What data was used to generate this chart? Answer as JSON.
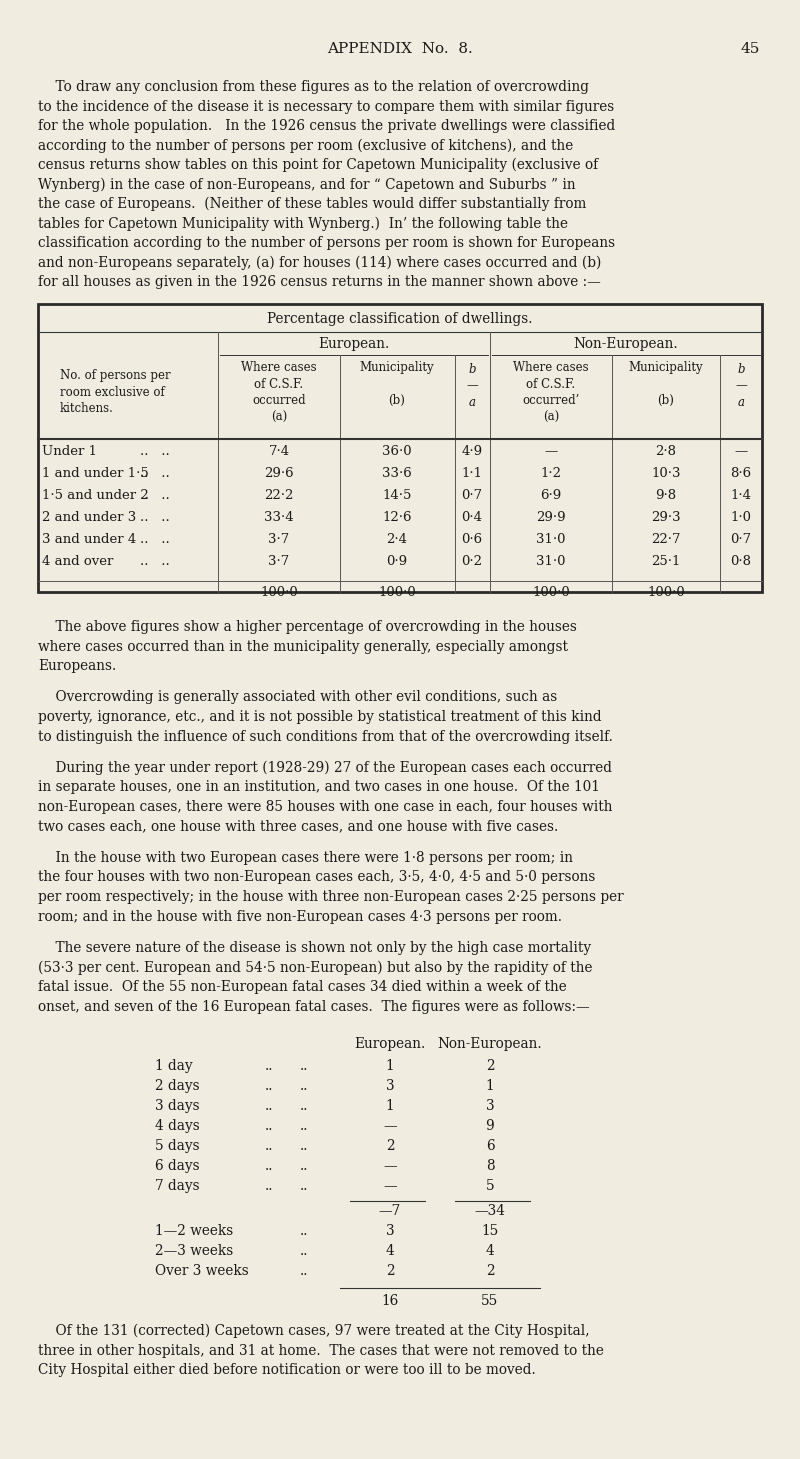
{
  "bg_color": "#f0ede0",
  "text_color": "#1a1a1a",
  "page_header": "APPENDIX  No.  8.",
  "page_number": "45",
  "paragraph1_lines": [
    "    To draw any conclusion from these figures as to the relation of overcrowding",
    "to the incidence of the disease it is necessary to compare them with similar figures",
    "for the whole population.   In the 1926 census the private dwellings were classified",
    "according to the number of persons per room (exclusive of kitchens), and the",
    "census returns show tables on this point for Capetown Municipality (exclusive of",
    "Wynberg) in the case of non-Europeans, and for “ Capetown and Suburbs ” in",
    "the case of Europeans.  (Neither of these tables would differ substantially from",
    "tables for Capetown Municipality with Wynberg.)  In’ the following table the",
    "classification according to the number of persons per room is shown for Europeans",
    "and non-Europeans separately, (a) for houses (114) where cases occurred and (b)",
    "for all houses as given in the 1926 census returns in the manner shown above :—"
  ],
  "table_title": "Percentage classification of dwellings.",
  "table_data": [
    [
      "7·4",
      "36·0",
      "4·9",
      "—",
      "2·8",
      "—"
    ],
    [
      "29·6",
      "33·6",
      "1·1",
      "1·2",
      "10·3",
      "8·6"
    ],
    [
      "22·2",
      "14·5",
      "0·7",
      "6·9",
      "9·8",
      "1·4"
    ],
    [
      "33·4",
      "12·6",
      "0·4",
      "29·9",
      "29·3",
      "1·0"
    ],
    [
      "3·7",
      "2·4",
      "0·6",
      "31·0",
      "22·7",
      "0·7"
    ],
    [
      "3·7",
      "0·9",
      "0·2",
      "31·0",
      "25·1",
      "0·8"
    ]
  ],
  "table_row_labels": [
    "Under 1",
    "1 and under 1·5",
    "1·5 and under 2",
    "2 and under 3",
    "3 and under 4",
    "4 and over"
  ],
  "table_totals": [
    "100·0",
    "100·0",
    "",
    "100·0",
    "100·0",
    ""
  ],
  "paragraph2_lines": [
    "    The above figures show a higher percentage of overcrowding in the houses",
    "where cases occurred than in the municipality generally, especially amongst",
    "Europeans."
  ],
  "paragraph3_lines": [
    "    Overcrowding is generally associated with other evil conditions, such as",
    "poverty, ignorance, etc., and it is not possible by statistical treatment of this kind",
    "to distinguish the influence of such conditions from that of the overcrowding itself."
  ],
  "paragraph4_lines": [
    "    During the year under report (1928-29) 27 of the European cases each occurred",
    "in separate houses, one in an institution, and two cases in one house.  Of the 101",
    "non-European cases, there were 85 houses with one case in each, four houses with",
    "two cases each, one house with three cases, and one house with five cases."
  ],
  "paragraph5_lines": [
    "    In the house with two European cases there were 1·8 persons per room; in",
    "the four houses with two non-European cases each, 3·5, 4·0, 4·5 and 5·0 persons",
    "per room respectively; in the house with three non-European cases 2·25 persons per",
    "room; and in the house with five non-European cases 4·3 persons per room."
  ],
  "paragraph6_lines": [
    "    The severe nature of the disease is shown not only by the high case mortality",
    "(53·3 per cent. European and 54·5 non-European) but also by the rapidity of the",
    "fatal issue.  Of the 55 non-European fatal cases 34 died within a week of the",
    "onset, and seven of the 16 European fatal cases.  The figures were as follows:—"
  ],
  "days_rows": [
    [
      "1 day",
      "1",
      "2"
    ],
    [
      "2 days",
      "3",
      "1"
    ],
    [
      "3 days",
      "1",
      "3"
    ],
    [
      "4 days",
      "—",
      "9"
    ],
    [
      "5 days",
      "2",
      "6"
    ],
    [
      "6 days",
      "—",
      "8"
    ],
    [
      "7 days",
      "—",
      "5"
    ]
  ],
  "days_subtotal": [
    "7",
    "34"
  ],
  "weeks_rows": [
    [
      "1—2 weeks",
      "3",
      "15"
    ],
    [
      "2—3 weeks",
      "4",
      "4"
    ],
    [
      "Over 3 weeks",
      "2",
      "2"
    ]
  ],
  "days_total": [
    "16",
    "55"
  ],
  "paragraph7_lines": [
    "    Of the 131 (corrected) Capetown cases, 97 were treated at the City Hospital,",
    "three in other hospitals, and 31 at home.  The cases that were not removed to the",
    "City Hospital either died before notification or were too ill to be moved."
  ]
}
